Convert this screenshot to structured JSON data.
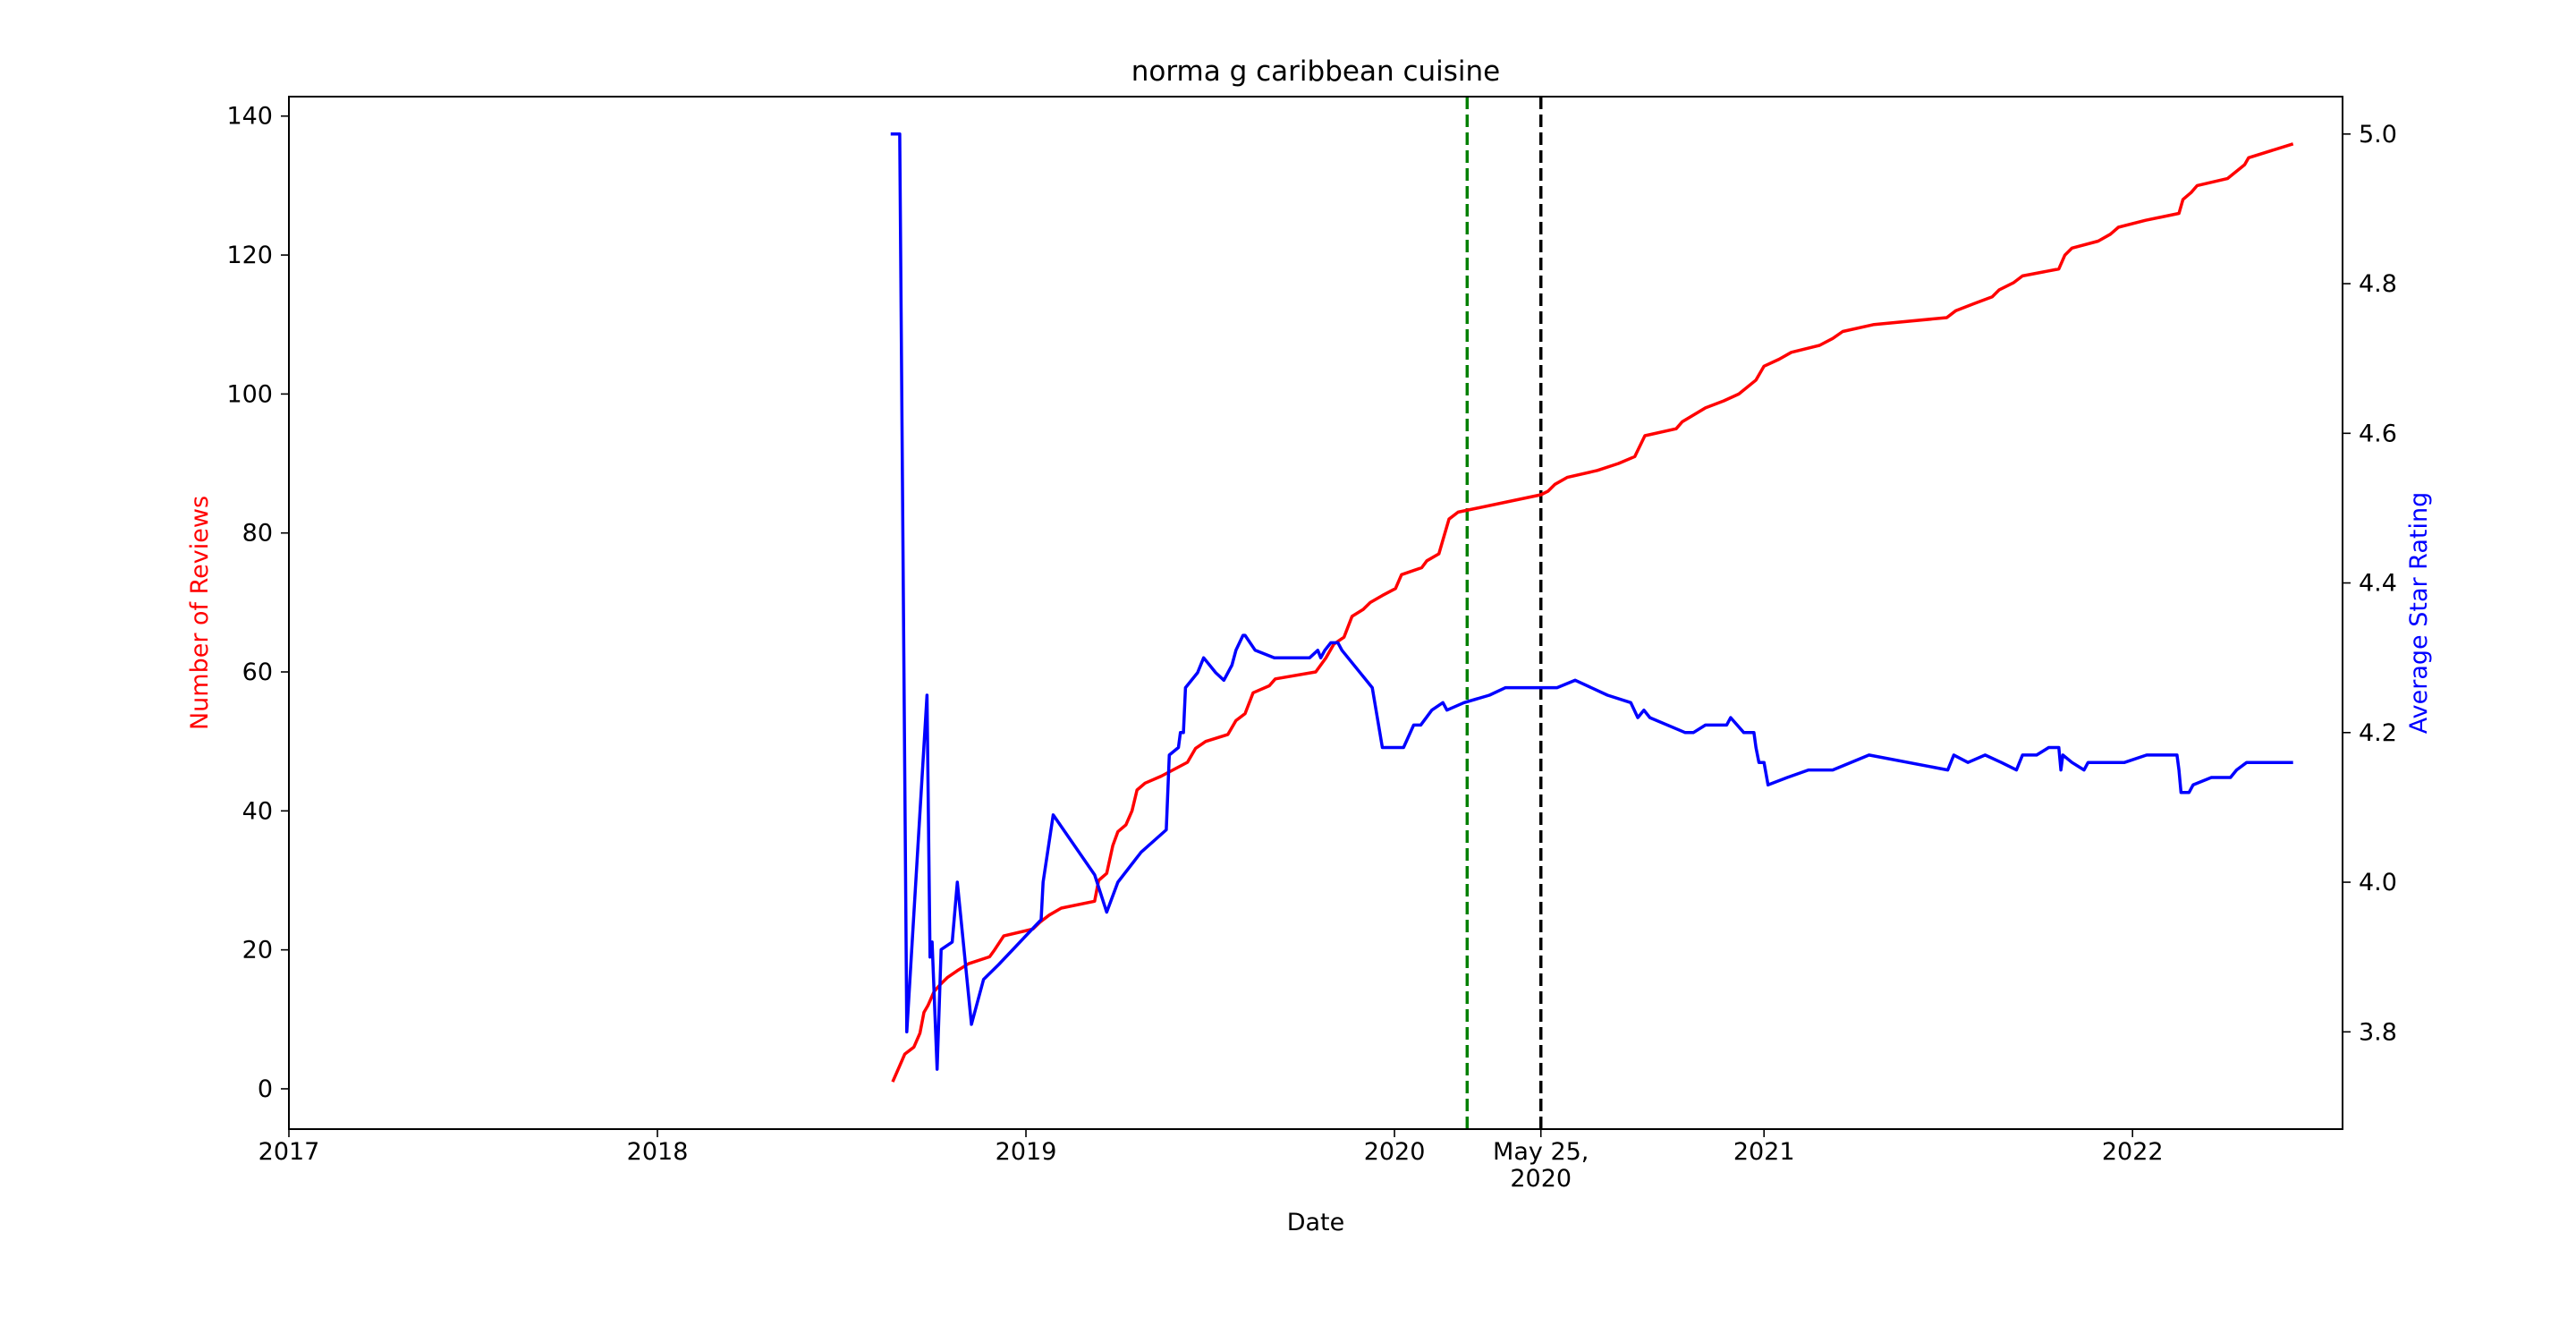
{
  "chart_data": {
    "type": "line",
    "title": "norma g caribbean cuisine",
    "xlabel": "Date",
    "ylabel_left": "Number of Reviews",
    "ylabel_right": "Average Star Rating",
    "xlim": [
      "2017-01-01",
      "2022-07-28"
    ],
    "ylim_left": [
      -5.8,
      142.8
    ],
    "ylim_right": [
      3.67,
      5.05
    ],
    "x_ticks": [
      {
        "date": "2017-01-01",
        "label": "2017"
      },
      {
        "date": "2018-01-01",
        "label": "2018"
      },
      {
        "date": "2019-01-01",
        "label": "2019"
      },
      {
        "date": "2020-01-01",
        "label": "2020"
      },
      {
        "date": "2020-05-25",
        "label": "May 25,\n2020"
      },
      {
        "date": "2021-01-01",
        "label": "2021"
      },
      {
        "date": "2022-01-01",
        "label": "2022"
      }
    ],
    "y_ticks_left": [
      0,
      20,
      40,
      60,
      80,
      100,
      120,
      140
    ],
    "y_ticks_right": [
      "3.8",
      "4.0",
      "4.2",
      "4.4",
      "4.6",
      "4.8",
      "5.0"
    ],
    "grid": false,
    "vlines": [
      {
        "date": "2020-03-13",
        "color": "#008000",
        "style": "dashed"
      },
      {
        "date": "2020-05-25",
        "color": "#000000",
        "style": "dashed"
      }
    ],
    "colors": {
      "reviews": "#ff0000",
      "rating": "#0000ff",
      "axis": "#000000"
    },
    "series": [
      {
        "axis": "left",
        "color": "#ff0000",
        "points": [
          [
            "2018-08-22",
            1
          ],
          [
            "2018-08-28",
            3
          ],
          [
            "2018-09-03",
            5
          ],
          [
            "2018-09-12",
            6
          ],
          [
            "2018-09-18",
            8
          ],
          [
            "2018-09-22",
            11
          ],
          [
            "2018-09-26",
            12
          ],
          [
            "2018-10-02",
            14
          ],
          [
            "2018-10-08",
            15
          ],
          [
            "2018-10-15",
            16
          ],
          [
            "2018-10-25",
            17
          ],
          [
            "2018-11-05",
            18
          ],
          [
            "2018-11-26",
            19
          ],
          [
            "2018-12-01",
            20
          ],
          [
            "2018-12-10",
            22
          ],
          [
            "2019-01-08",
            23
          ],
          [
            "2019-01-15",
            24
          ],
          [
            "2019-01-24",
            25
          ],
          [
            "2019-02-05",
            26
          ],
          [
            "2019-03-10",
            27
          ],
          [
            "2019-03-14",
            30
          ],
          [
            "2019-03-22",
            31
          ],
          [
            "2019-03-28",
            35
          ],
          [
            "2019-04-02",
            37
          ],
          [
            "2019-04-10",
            38
          ],
          [
            "2019-04-16",
            40
          ],
          [
            "2019-04-21",
            43
          ],
          [
            "2019-04-29",
            44
          ],
          [
            "2019-05-15",
            45
          ],
          [
            "2019-06-10",
            47
          ],
          [
            "2019-06-18",
            49
          ],
          [
            "2019-06-28",
            50
          ],
          [
            "2019-07-20",
            51
          ],
          [
            "2019-07-28",
            53
          ],
          [
            "2019-08-06",
            54
          ],
          [
            "2019-08-14",
            57
          ],
          [
            "2019-08-30",
            58
          ],
          [
            "2019-09-05",
            59
          ],
          [
            "2019-10-15",
            60
          ],
          [
            "2019-10-25",
            62
          ],
          [
            "2019-11-02",
            64
          ],
          [
            "2019-11-12",
            65
          ],
          [
            "2019-11-20",
            68
          ],
          [
            "2019-12-01",
            69
          ],
          [
            "2019-12-08",
            70
          ],
          [
            "2019-12-20",
            71
          ],
          [
            "2020-01-02",
            72
          ],
          [
            "2020-01-08",
            74
          ],
          [
            "2020-01-28",
            75
          ],
          [
            "2020-02-02",
            76
          ],
          [
            "2020-02-14",
            77
          ],
          [
            "2020-02-18",
            79
          ],
          [
            "2020-02-24",
            82
          ],
          [
            "2020-03-04",
            83
          ],
          [
            "2020-05-25",
            85.5
          ],
          [
            "2020-06-01",
            86
          ],
          [
            "2020-06-08",
            87
          ],
          [
            "2020-06-20",
            88
          ],
          [
            "2020-07-20",
            89
          ],
          [
            "2020-08-10",
            90
          ],
          [
            "2020-08-26",
            91
          ],
          [
            "2020-09-05",
            94
          ],
          [
            "2020-10-06",
            95
          ],
          [
            "2020-10-12",
            96
          ],
          [
            "2020-11-04",
            98
          ],
          [
            "2020-11-22",
            99
          ],
          [
            "2020-12-07",
            100
          ],
          [
            "2020-12-24",
            102
          ],
          [
            "2021-01-01",
            104
          ],
          [
            "2021-01-16",
            105
          ],
          [
            "2021-01-28",
            106
          ],
          [
            "2021-02-25",
            107
          ],
          [
            "2021-03-10",
            108
          ],
          [
            "2021-03-20",
            109
          ],
          [
            "2021-04-20",
            110
          ],
          [
            "2021-07-01",
            111
          ],
          [
            "2021-07-10",
            112
          ],
          [
            "2021-07-28",
            113
          ],
          [
            "2021-08-15",
            114
          ],
          [
            "2021-08-22",
            115
          ],
          [
            "2021-09-05",
            116
          ],
          [
            "2021-09-14",
            117
          ],
          [
            "2021-10-20",
            118
          ],
          [
            "2021-10-26",
            120
          ],
          [
            "2021-11-02",
            121
          ],
          [
            "2021-11-28",
            122
          ],
          [
            "2021-12-10",
            123
          ],
          [
            "2021-12-18",
            124
          ],
          [
            "2022-01-14",
            125
          ],
          [
            "2022-02-16",
            126
          ],
          [
            "2022-02-20",
            128
          ],
          [
            "2022-02-28",
            129
          ],
          [
            "2022-03-06",
            130
          ],
          [
            "2022-04-05",
            131
          ],
          [
            "2022-04-22",
            133
          ],
          [
            "2022-04-26",
            134
          ],
          [
            "2022-06-09",
            136
          ]
        ]
      },
      {
        "axis": "right",
        "color": "#0000ff",
        "points": [
          [
            "2018-08-20",
            5.0
          ],
          [
            "2018-08-29",
            5.0
          ],
          [
            "2018-09-05",
            3.8
          ],
          [
            "2018-09-25",
            4.25
          ],
          [
            "2018-09-28",
            3.9
          ],
          [
            "2018-09-30",
            3.92
          ],
          [
            "2018-10-05",
            3.75
          ],
          [
            "2018-10-09",
            3.91
          ],
          [
            "2018-10-20",
            3.92
          ],
          [
            "2018-10-25",
            4.0
          ],
          [
            "2018-11-08",
            3.81
          ],
          [
            "2018-11-20",
            3.87
          ],
          [
            "2018-12-05",
            3.89
          ],
          [
            "2019-01-16",
            3.95
          ],
          [
            "2019-01-18",
            4.0
          ],
          [
            "2019-01-28",
            4.09
          ],
          [
            "2019-03-10",
            4.01
          ],
          [
            "2019-03-22",
            3.96
          ],
          [
            "2019-04-02",
            4.0
          ],
          [
            "2019-04-25",
            4.04
          ],
          [
            "2019-05-20",
            4.07
          ],
          [
            "2019-05-23",
            4.17
          ],
          [
            "2019-06-01",
            4.18
          ],
          [
            "2019-06-03",
            4.2
          ],
          [
            "2019-06-06",
            4.2
          ],
          [
            "2019-06-08",
            4.26
          ],
          [
            "2019-06-20",
            4.28
          ],
          [
            "2019-06-26",
            4.3
          ],
          [
            "2019-07-08",
            4.28
          ],
          [
            "2019-07-16",
            4.27
          ],
          [
            "2019-07-24",
            4.29
          ],
          [
            "2019-07-28",
            4.31
          ],
          [
            "2019-08-04",
            4.33
          ],
          [
            "2019-08-06",
            4.33
          ],
          [
            "2019-08-16",
            4.31
          ],
          [
            "2019-09-04",
            4.3
          ],
          [
            "2019-09-15",
            4.3
          ],
          [
            "2019-10-09",
            4.3
          ],
          [
            "2019-10-17",
            4.31
          ],
          [
            "2019-10-20",
            4.3
          ],
          [
            "2019-10-24",
            4.31
          ],
          [
            "2019-10-30",
            4.32
          ],
          [
            "2019-11-06",
            4.32
          ],
          [
            "2019-11-10",
            4.31
          ],
          [
            "2019-12-10",
            4.26
          ],
          [
            "2019-12-20",
            4.18
          ],
          [
            "2020-01-10",
            4.18
          ],
          [
            "2020-01-20",
            4.21
          ],
          [
            "2020-01-27",
            4.21
          ],
          [
            "2020-02-07",
            4.23
          ],
          [
            "2020-02-18",
            4.24
          ],
          [
            "2020-02-22",
            4.23
          ],
          [
            "2020-03-10",
            4.24
          ],
          [
            "2020-04-04",
            4.25
          ],
          [
            "2020-04-20",
            4.26
          ],
          [
            "2020-05-22",
            4.26
          ],
          [
            "2020-06-10",
            4.26
          ],
          [
            "2020-06-28",
            4.27
          ],
          [
            "2020-07-30",
            4.25
          ],
          [
            "2020-08-22",
            4.24
          ],
          [
            "2020-08-29",
            4.22
          ],
          [
            "2020-09-04",
            4.23
          ],
          [
            "2020-09-10",
            4.22
          ],
          [
            "2020-10-15",
            4.2
          ],
          [
            "2020-10-23",
            4.2
          ],
          [
            "2020-11-04",
            4.21
          ],
          [
            "2020-11-12",
            4.21
          ],
          [
            "2020-11-25",
            4.21
          ],
          [
            "2020-11-29",
            4.22
          ],
          [
            "2020-12-12",
            4.2
          ],
          [
            "2020-12-22",
            4.2
          ],
          [
            "2020-12-24",
            4.18
          ],
          [
            "2020-12-27",
            4.16
          ],
          [
            "2021-01-01",
            4.16
          ],
          [
            "2021-01-05",
            4.13
          ],
          [
            "2021-01-24",
            4.14
          ],
          [
            "2021-02-14",
            4.15
          ],
          [
            "2021-03-10",
            4.15
          ],
          [
            "2021-04-15",
            4.17
          ],
          [
            "2021-07-02",
            4.15
          ],
          [
            "2021-07-08",
            4.17
          ],
          [
            "2021-07-22",
            4.16
          ],
          [
            "2021-08-08",
            4.17
          ],
          [
            "2021-08-24",
            4.16
          ],
          [
            "2021-09-08",
            4.15
          ],
          [
            "2021-09-14",
            4.17
          ],
          [
            "2021-09-28",
            4.17
          ],
          [
            "2021-10-10",
            4.18
          ],
          [
            "2021-10-20",
            4.18
          ],
          [
            "2021-10-22",
            4.15
          ],
          [
            "2021-10-24",
            4.17
          ],
          [
            "2021-11-02",
            4.16
          ],
          [
            "2021-11-14",
            4.15
          ],
          [
            "2021-11-18",
            4.16
          ],
          [
            "2021-12-24",
            4.16
          ],
          [
            "2022-01-15",
            4.17
          ],
          [
            "2022-02-14",
            4.17
          ],
          [
            "2022-02-16",
            4.15
          ],
          [
            "2022-02-18",
            4.12
          ],
          [
            "2022-02-26",
            4.12
          ],
          [
            "2022-03-02",
            4.13
          ],
          [
            "2022-03-20",
            4.14
          ],
          [
            "2022-04-08",
            4.14
          ],
          [
            "2022-04-14",
            4.15
          ],
          [
            "2022-04-24",
            4.16
          ],
          [
            "2022-04-25",
            4.16
          ],
          [
            "2022-06-09",
            4.16
          ]
        ]
      }
    ]
  }
}
